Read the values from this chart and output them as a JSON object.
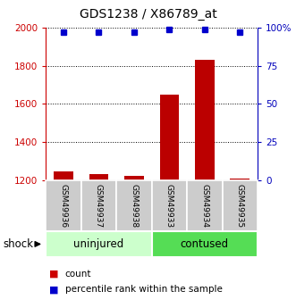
{
  "title": "GDS1238 / X86789_at",
  "samples": [
    "GSM49936",
    "GSM49937",
    "GSM49938",
    "GSM49933",
    "GSM49934",
    "GSM49935"
  ],
  "counts": [
    1248,
    1232,
    1222,
    1650,
    1830,
    1208
  ],
  "percentiles": [
    97,
    97,
    97,
    99,
    99,
    97
  ],
  "ymin": 1200,
  "ymax": 2000,
  "yticks_left": [
    1200,
    1400,
    1600,
    1800,
    2000
  ],
  "yticks_right_labels": [
    "0",
    "25",
    "50",
    "75",
    "100%"
  ],
  "yticks_right_vals": [
    1200,
    1400,
    1600,
    1800,
    2000
  ],
  "bar_color": "#bb0000",
  "dot_color": "#0000cc",
  "left_tick_color": "#cc0000",
  "right_tick_color": "#0000bb",
  "grid_color": "#555555",
  "sample_box_color": "#cccccc",
  "uninjured_bg": "#ccffcc",
  "contused_bg": "#55dd55",
  "shock_label": "shock",
  "uninjured_label": "uninjured",
  "contused_label": "contused",
  "legend_count_color": "#cc0000",
  "legend_pct_color": "#0000cc",
  "fig_width": 3.31,
  "fig_height": 3.45
}
